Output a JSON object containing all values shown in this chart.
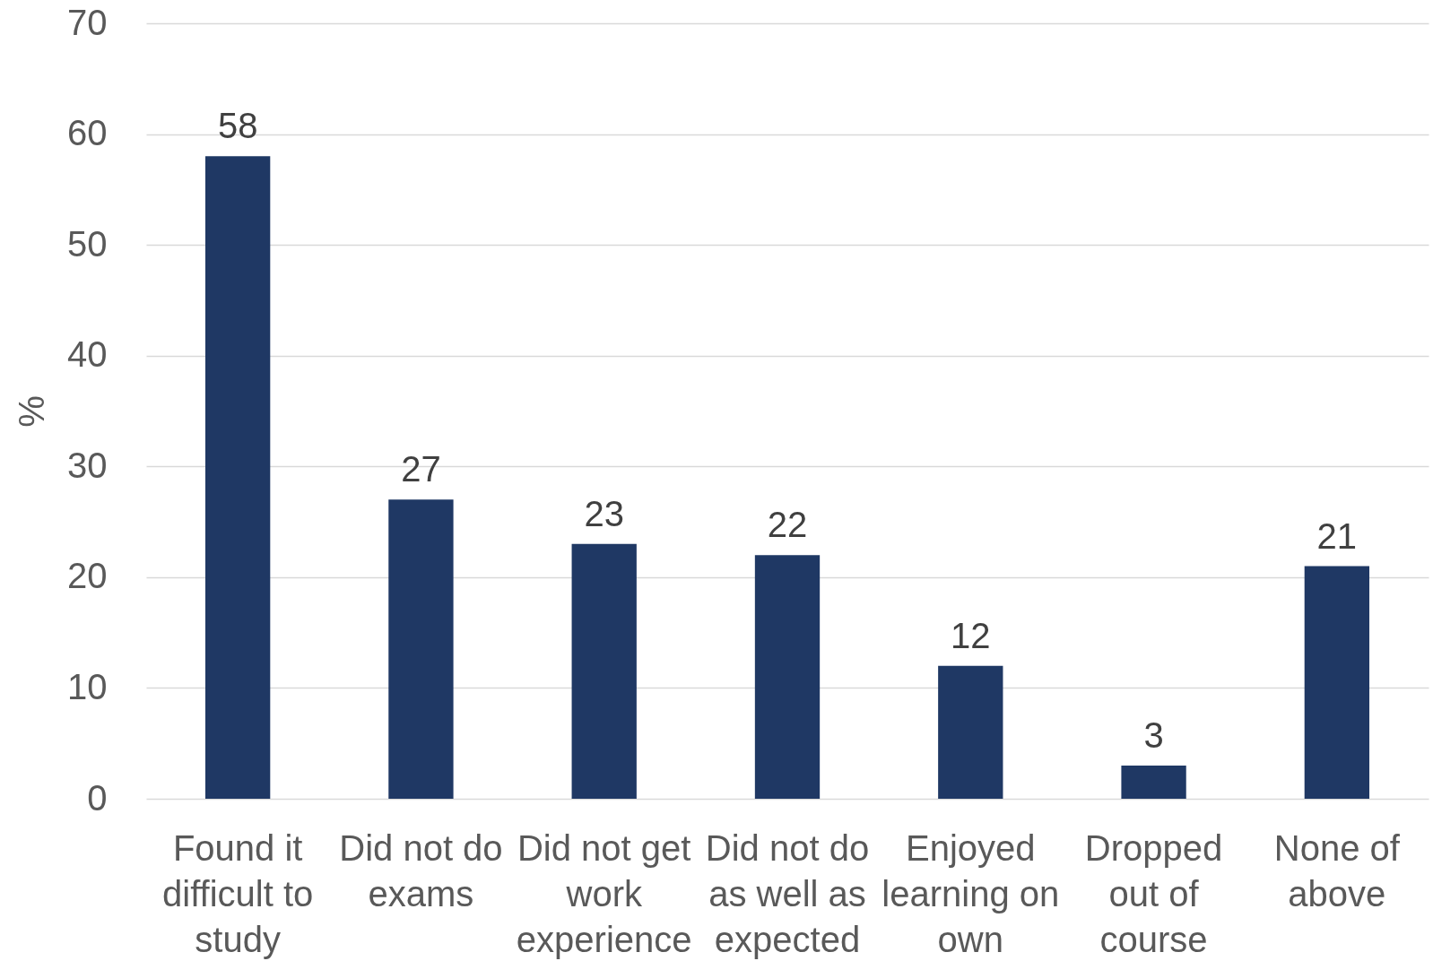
{
  "chart_data": {
    "type": "bar",
    "ylabel": "%",
    "categories": [
      "Found it difficult to study",
      "Did not do exams",
      "Did not get work experience",
      "Did not do as well as expected",
      "Enjoyed learning on own",
      "Dropped out of course",
      "None of above"
    ],
    "values": [
      58,
      27,
      23,
      22,
      12,
      3,
      21
    ],
    "color": "#1f3864",
    "ylim": [
      0,
      70
    ],
    "yticks": [
      0,
      10,
      20,
      30,
      40,
      50,
      60,
      70
    ],
    "grid": "y",
    "data_labels": true
  }
}
